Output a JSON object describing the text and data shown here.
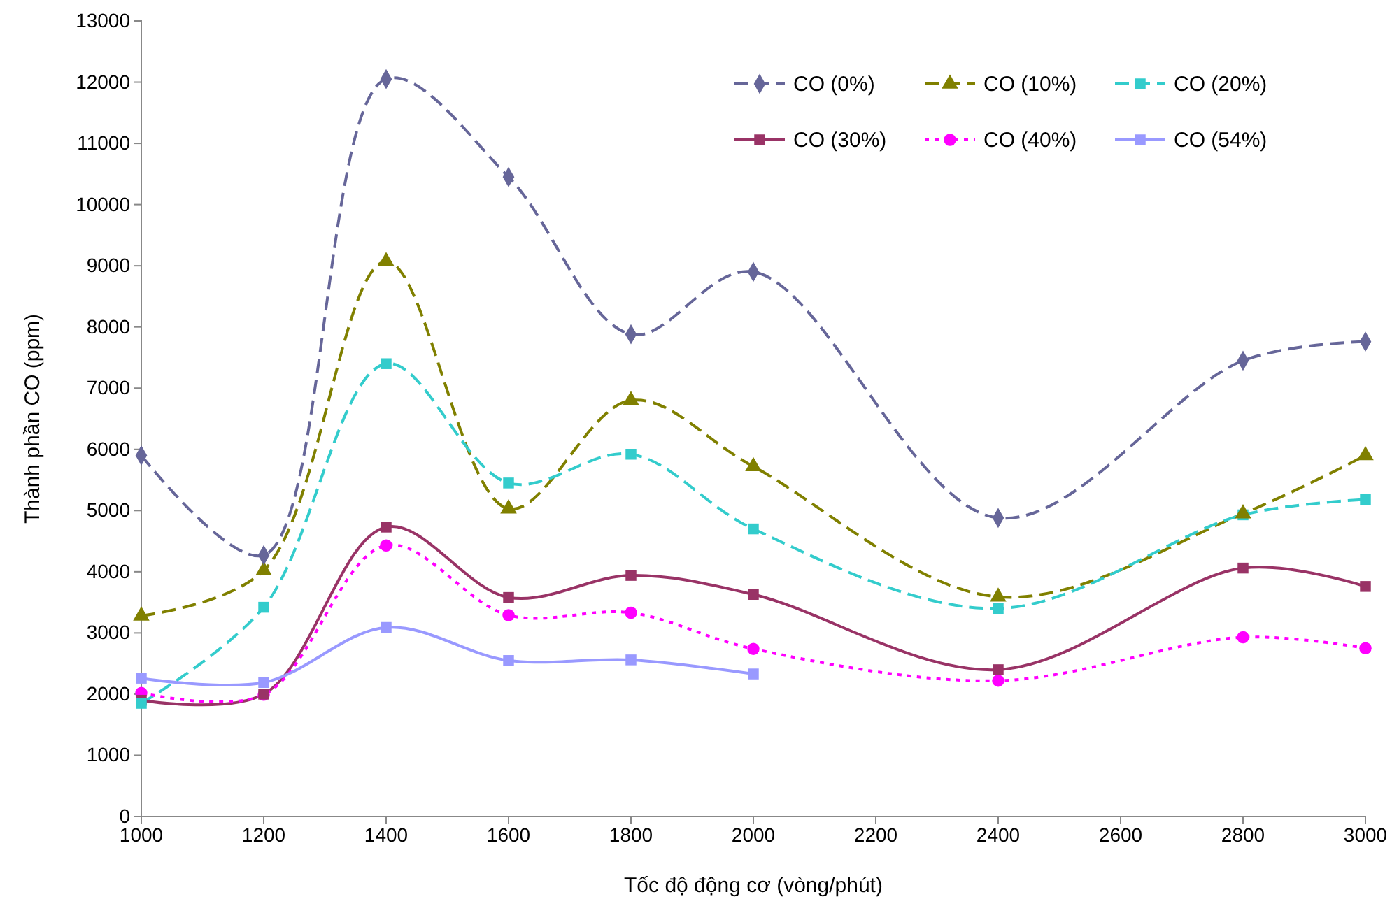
{
  "chart_data": {
    "type": "line",
    "xlabel": "Tốc độ động cơ (vòng/phút)",
    "ylabel": "Thành phần CO (ppm)",
    "x": [
      1000,
      1200,
      1400,
      1600,
      1800,
      2000,
      2400,
      2800,
      3000
    ],
    "xlim": [
      1000,
      3000
    ],
    "xticks": [
      1000,
      1200,
      1400,
      1600,
      1800,
      2000,
      2200,
      2400,
      2600,
      2800,
      3000
    ],
    "ylim": [
      0,
      13000
    ],
    "yticks": [
      0,
      1000,
      2000,
      3000,
      4000,
      5000,
      6000,
      7000,
      8000,
      9000,
      10000,
      11000,
      12000,
      13000
    ],
    "grid": false,
    "legend": "top right",
    "series": [
      {
        "name": "CO (0%)",
        "color": "#666699",
        "marker": "diamond",
        "line_style": "dashed",
        "values": [
          5900,
          4270,
          12050,
          10450,
          7880,
          8900,
          4880,
          7450,
          7760
        ]
      },
      {
        "name": "CO (10%)",
        "color": "#808000",
        "marker": "triangle",
        "line_style": "dashed",
        "values": [
          3280,
          4020,
          9070,
          5030,
          6800,
          5720,
          3590,
          4950,
          5900
        ]
      },
      {
        "name": "CO (20%)",
        "color": "#33cccc",
        "marker": "square",
        "line_style": "dashed",
        "values": [
          1850,
          3420,
          7400,
          5450,
          5920,
          4700,
          3400,
          4930,
          5180
        ]
      },
      {
        "name": "CO (30%)",
        "color": "#993366",
        "marker": "square",
        "line_style": "solid",
        "values": [
          1900,
          2000,
          4730,
          3580,
          3940,
          3630,
          2400,
          4060,
          3760
        ]
      },
      {
        "name": "CO (40%)",
        "color": "#ff00ff",
        "marker": "circle",
        "line_style": "dotted",
        "values": [
          2020,
          1990,
          4430,
          3290,
          3330,
          2740,
          2220,
          2930,
          2750
        ]
      },
      {
        "name": "CO (54%)",
        "color": "#9999ff",
        "marker": "square",
        "line_style": "solid",
        "values": [
          2260,
          2190,
          3090,
          2550,
          2560,
          2330,
          null,
          null,
          null
        ]
      }
    ]
  }
}
